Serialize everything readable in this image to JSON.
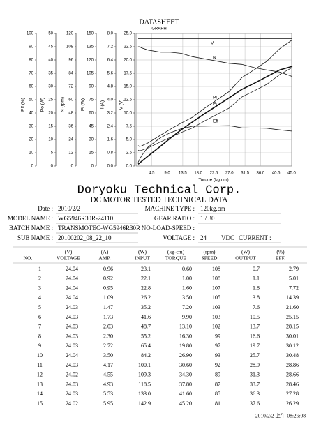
{
  "chart_data": {
    "type": "line",
    "title": "DATASHEET",
    "subtitle": "GRAPH",
    "x_label": "Torque (kg.cm)",
    "xlim": [
      0,
      45
    ],
    "xticks": [
      4.5,
      {
        "value": 9,
        "label": "9.0"
      },
      13.5,
      {
        "value": 18,
        "label": "18.0"
      },
      22.5,
      {
        "value": 27,
        "label": "27.0"
      },
      31.5,
      {
        "value": 36,
        "label": "36.0"
      },
      40.5,
      {
        "value": 45,
        "label": "45.0"
      }
    ],
    "grid": true,
    "y_axes": [
      {
        "label": "Eff (%)",
        "ylim": [
          0,
          100
        ],
        "ticks": [
          0,
          10,
          20,
          30,
          40,
          50,
          60,
          70,
          80,
          90,
          100
        ]
      },
      {
        "label": "Po (W)",
        "ylim": [
          0,
          50
        ],
        "ticks": [
          0,
          5,
          10,
          15,
          20,
          25,
          30,
          35,
          40,
          45,
          50
        ]
      },
      {
        "label": "N (rpm)",
        "ylim": [
          0,
          120
        ],
        "ticks": [
          0,
          12,
          24,
          36,
          48,
          60,
          72,
          84,
          96,
          108,
          120
        ]
      },
      {
        "label": "Pi (W)",
        "ylim": [
          0,
          150
        ],
        "ticks": [
          0,
          15,
          30,
          45,
          60,
          75,
          90,
          105,
          120,
          135,
          150
        ]
      },
      {
        "label": "I (A)",
        "ylim": [
          0,
          8
        ],
        "ticks": [
          {
            "value": 0,
            "label": "0.0"
          },
          0.8,
          1.6,
          2.4,
          3.2,
          {
            "value": 4,
            "label": "4.0"
          },
          4.8,
          5.6,
          6.4,
          7.2,
          {
            "value": 8,
            "label": "8.0"
          }
        ]
      },
      {
        "label": "V (V)",
        "ylim": [
          0,
          25
        ],
        "ticks": [
          {
            "value": 0,
            "label": "0.0"
          },
          2.5,
          {
            "value": 5,
            "label": "5.0"
          },
          7.5,
          {
            "value": 10,
            "label": "10.0"
          },
          12.5,
          {
            "value": 15,
            "label": "15.0"
          },
          17.5,
          {
            "value": 20,
            "label": "20.0"
          },
          22.5,
          {
            "value": 25,
            "label": "25.0"
          }
        ]
      }
    ],
    "curve_labels": [
      "V",
      "N",
      "Pi",
      "Po",
      "Eff"
    ]
  },
  "company": "Doryoku Technical Corp.",
  "doc_title": "DC MOTOR TESTED TECHNICAL DATA",
  "fields_left": [
    {
      "label": "Date :",
      "value": "2010/2/2"
    },
    {
      "label": "MODEL NAME :",
      "value": "WG5946R30R-24110"
    },
    {
      "label": "BATCH NAME :",
      "value": "TRANSMOTEC-WG5946R30R"
    },
    {
      "label": "SUB NAME :",
      "value": "20100202_08_22_10"
    }
  ],
  "fields_right": [
    {
      "label": "MACHINE TYPE :",
      "value": "120kg.cm"
    },
    {
      "label": "GEAR RATIO :",
      "value": "1   / 30"
    },
    {
      "label": "NO-LOAD-SPEED :"
    },
    {
      "label": "VOLTAGE :",
      "value": "24",
      "unit": "VDC",
      "extra_label": "CURRENT :"
    }
  ],
  "table": {
    "units": [
      "(V)",
      "(A)",
      "(W)",
      "(kg-cm)",
      "(rpm)",
      "(W)",
      "(%)"
    ],
    "columns": [
      "NO.",
      "VOLTAGE",
      "AMP.",
      "INPUT",
      "TORQUE",
      "SPEED",
      "OUTPUT",
      "EFF."
    ],
    "rows": [
      [
        "1",
        "24.04",
        "0.96",
        "23.1",
        "0.60",
        "108",
        "0.7",
        "2.79"
      ],
      [
        "2",
        "24.04",
        "0.92",
        "22.1",
        "1.00",
        "108",
        "1.1",
        "5.01"
      ],
      [
        "3",
        "24.04",
        "0.95",
        "22.8",
        "1.60",
        "107",
        "1.8",
        "7.72"
      ],
      [
        "4",
        "24.04",
        "1.09",
        "26.2",
        "3.50",
        "105",
        "3.8",
        "14.39"
      ],
      [
        "5",
        "24.03",
        "1.47",
        "35.2",
        "7.20",
        "103",
        "7.6",
        "21.60"
      ],
      [
        "6",
        "24.03",
        "1.73",
        "41.6",
        "9.90",
        "103",
        "10.5",
        "25.15"
      ],
      [
        "7",
        "24.03",
        "2.03",
        "48.7",
        "13.10",
        "102",
        "13.7",
        "28.15"
      ],
      [
        "8",
        "24.03",
        "2.30",
        "55.2",
        "16.30",
        "99",
        "16.6",
        "30.01"
      ],
      [
        "9",
        "24.03",
        "2.72",
        "65.4",
        "19.80",
        "97",
        "19.7",
        "30.12"
      ],
      [
        "10",
        "24.04",
        "3.50",
        "84.2",
        "26.90",
        "93",
        "25.7",
        "30.48"
      ],
      [
        "11",
        "24.03",
        "4.17",
        "100.1",
        "30.60",
        "92",
        "28.9",
        "28.86"
      ],
      [
        "12",
        "24.02",
        "4.55",
        "109.3",
        "34.30",
        "89",
        "31.3",
        "28.66"
      ],
      [
        "13",
        "24.03",
        "4.93",
        "118.5",
        "37.80",
        "87",
        "33.7",
        "28.46"
      ],
      [
        "14",
        "24.03",
        "5.53",
        "133.0",
        "41.60",
        "85",
        "36.3",
        "27.28"
      ],
      [
        "15",
        "24.02",
        "5.95",
        "142.9",
        "45.20",
        "81",
        "37.6",
        "26.29"
      ]
    ]
  },
  "footer": "2010/2/2 上午 08:26:08"
}
